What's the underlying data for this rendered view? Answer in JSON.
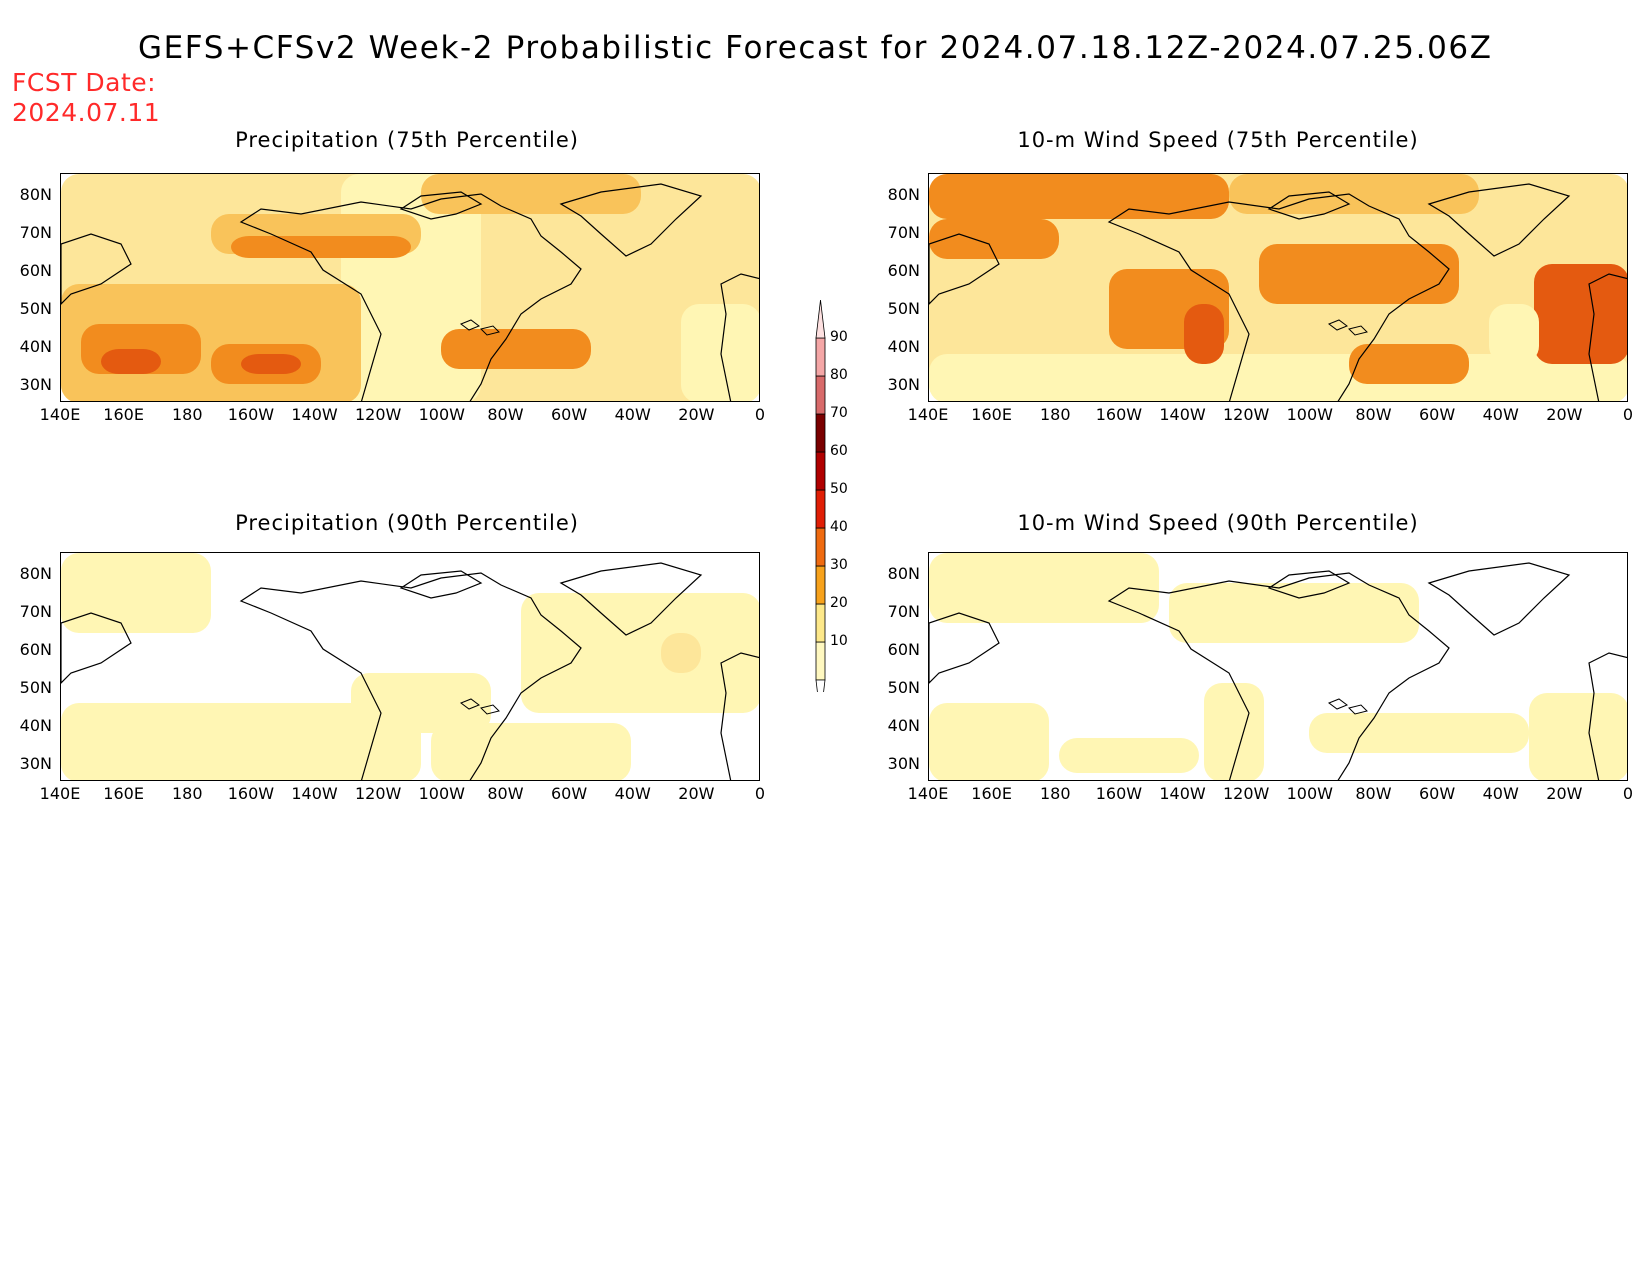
{
  "title": "GEFS+CFSv2 Week-2 Probabilistic Forecast for 2024.07.18.12Z-2024.07.25.06Z",
  "fcst_date_label": "FCST Date:",
  "fcst_date_value": "2024.07.11",
  "panels": [
    {
      "title": "Precipitation (75th Percentile)"
    },
    {
      "title": "10-m Wind Speed (75th Percentile)"
    },
    {
      "title": "Precipitation (90th Percentile)"
    },
    {
      "title": "10-m Wind Speed (90th Percentile)"
    }
  ],
  "lat_ticks": [
    "80N",
    "70N",
    "60N",
    "50N",
    "40N",
    "30N"
  ],
  "lon_ticks": [
    "140E",
    "160E",
    "180",
    "160W",
    "140W",
    "120W",
    "100W",
    "80W",
    "60W",
    "40W",
    "20W",
    "0"
  ],
  "colorbar": {
    "levels": [
      "10",
      "20",
      "30",
      "40",
      "50",
      "60",
      "70",
      "80",
      "90"
    ],
    "colors": [
      "#fff8c0",
      "#fde88a",
      "#f7a21c",
      "#ef6a10",
      "#e01e05",
      "#b00000",
      "#7a0000",
      "#d86a6a",
      "#f4a6a6",
      "#fde0e0"
    ]
  },
  "shading_colors": {
    "none": "#ffffff",
    "light": "#fff6b4",
    "pale": "#fde69a",
    "mid": "#f9c35a",
    "orange": "#f28c1e",
    "dark": "#e45a10",
    "red": "#d02808"
  }
}
